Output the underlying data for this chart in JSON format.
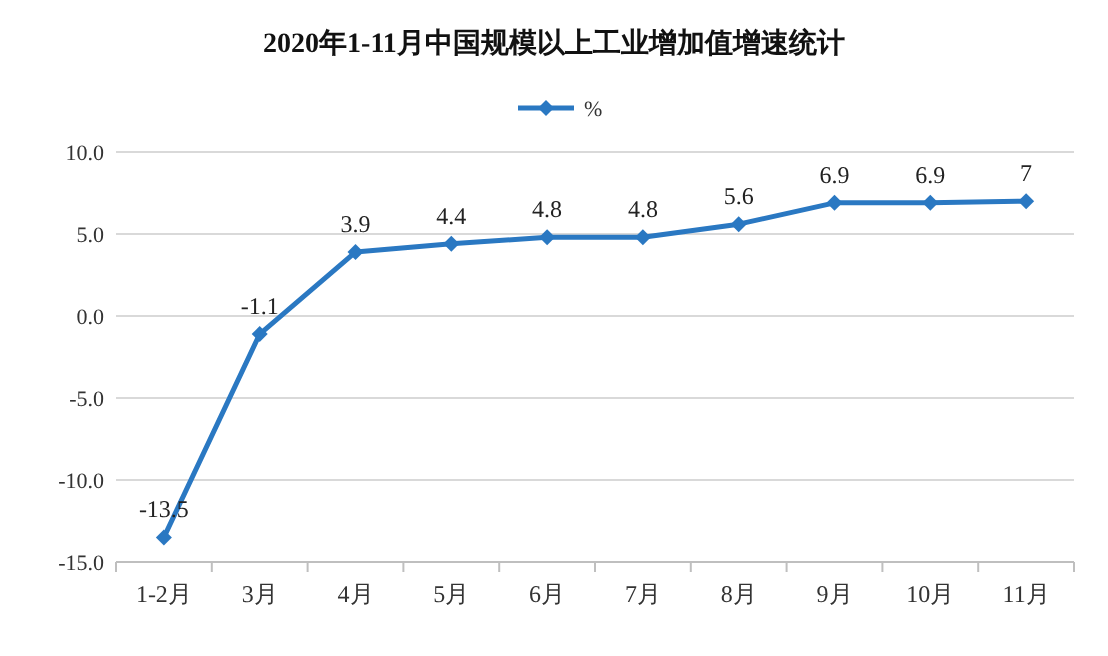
{
  "chart_data": {
    "type": "line",
    "title": "2020年1-11月中国规模以上工业增加值增速统计",
    "categories": [
      "1-2月",
      "3月",
      "4月",
      "5月",
      "6月",
      "7月",
      "8月",
      "9月",
      "10月",
      "11月"
    ],
    "series": [
      {
        "name": "%",
        "color": "#2a78c2",
        "values": [
          -13.5,
          -1.1,
          3.9,
          4.4,
          4.8,
          4.8,
          5.6,
          6.9,
          6.9,
          7
        ]
      }
    ],
    "ylim": [
      -15,
      10
    ],
    "yticks": [
      {
        "value": -15,
        "label": "-15.0"
      },
      {
        "value": -10,
        "label": "-10.0"
      },
      {
        "value": -5,
        "label": "-5.0"
      },
      {
        "value": 0,
        "label": "0.0"
      },
      {
        "value": 5,
        "label": "5.0"
      },
      {
        "value": 10,
        "label": "10.0"
      }
    ],
    "grid": "y",
    "legend": "top",
    "marker": "diamond",
    "line_style": "solid",
    "data_labels": true
  }
}
